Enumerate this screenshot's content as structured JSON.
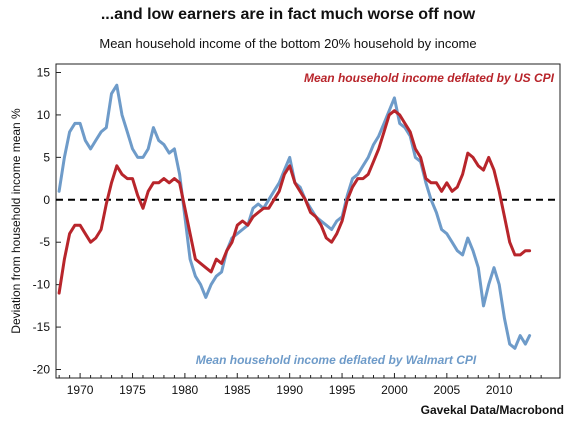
{
  "title": "...and low earners are in fact much worse off now",
  "subtitle": "Mean household income of the bottom 20% household by income",
  "source": "Gavekal Data/Macrobond",
  "chart_data": {
    "type": "line",
    "ylabel": "Deviation from household income mean %",
    "xlim": [
      1967.7,
      2015.8
    ],
    "ylim": [
      -21,
      16
    ],
    "xticks": [
      1970,
      1975,
      1980,
      1985,
      1990,
      1995,
      2000,
      2005,
      2010
    ],
    "yticks": [
      15,
      10,
      5,
      0,
      -5,
      -10,
      -15,
      -20
    ],
    "reference_line": {
      "y": 0,
      "style": "dashed",
      "color": "#000000"
    },
    "series": [
      {
        "name": "Mean household income deflated by US CPI",
        "color": "#b8252b",
        "label_position": "top-right",
        "points": [
          [
            1968.0,
            -11.0
          ],
          [
            1968.5,
            -7.0
          ],
          [
            1969.0,
            -4.0
          ],
          [
            1969.5,
            -3.0
          ],
          [
            1970.0,
            -3.0
          ],
          [
            1970.5,
            -4.0
          ],
          [
            1971.0,
            -5.0
          ],
          [
            1971.5,
            -4.5
          ],
          [
            1972.0,
            -3.5
          ],
          [
            1972.5,
            -0.5
          ],
          [
            1973.0,
            2.0
          ],
          [
            1973.5,
            4.0
          ],
          [
            1974.0,
            3.0
          ],
          [
            1974.5,
            2.5
          ],
          [
            1975.0,
            2.5
          ],
          [
            1975.5,
            0.5
          ],
          [
            1976.0,
            -1.0
          ],
          [
            1976.5,
            1.0
          ],
          [
            1977.0,
            2.0
          ],
          [
            1977.5,
            2.0
          ],
          [
            1978.0,
            2.5
          ],
          [
            1978.5,
            2.0
          ],
          [
            1979.0,
            2.5
          ],
          [
            1979.5,
            2.0
          ],
          [
            1980.0,
            -1.0
          ],
          [
            1980.5,
            -4.0
          ],
          [
            1981.0,
            -7.0
          ],
          [
            1981.5,
            -7.5
          ],
          [
            1982.0,
            -8.0
          ],
          [
            1982.5,
            -8.5
          ],
          [
            1983.0,
            -7.0
          ],
          [
            1983.5,
            -7.5
          ],
          [
            1984.0,
            -6.0
          ],
          [
            1984.5,
            -5.0
          ],
          [
            1985.0,
            -3.0
          ],
          [
            1985.5,
            -2.5
          ],
          [
            1986.0,
            -3.0
          ],
          [
            1986.5,
            -2.0
          ],
          [
            1987.0,
            -1.5
          ],
          [
            1987.5,
            -1.0
          ],
          [
            1988.0,
            -1.0
          ],
          [
            1988.5,
            0.0
          ],
          [
            1989.0,
            1.0
          ],
          [
            1989.5,
            3.0
          ],
          [
            1990.0,
            4.0
          ],
          [
            1990.5,
            2.0
          ],
          [
            1991.0,
            1.0
          ],
          [
            1991.5,
            0.0
          ],
          [
            1992.0,
            -1.5
          ],
          [
            1992.5,
            -2.0
          ],
          [
            1993.0,
            -3.0
          ],
          [
            1993.5,
            -4.5
          ],
          [
            1994.0,
            -5.0
          ],
          [
            1994.5,
            -4.0
          ],
          [
            1995.0,
            -2.5
          ],
          [
            1995.5,
            0.0
          ],
          [
            1996.0,
            1.5
          ],
          [
            1996.5,
            2.5
          ],
          [
            1997.0,
            2.5
          ],
          [
            1997.5,
            3.0
          ],
          [
            1998.0,
            4.5
          ],
          [
            1998.5,
            6.0
          ],
          [
            1999.0,
            8.0
          ],
          [
            1999.5,
            10.0
          ],
          [
            2000.0,
            10.5
          ],
          [
            2000.5,
            10.0
          ],
          [
            2001.0,
            9.0
          ],
          [
            2001.5,
            8.0
          ],
          [
            2002.0,
            6.0
          ],
          [
            2002.5,
            5.0
          ],
          [
            2003.0,
            2.5
          ],
          [
            2003.5,
            2.0
          ],
          [
            2004.0,
            2.0
          ],
          [
            2004.5,
            1.0
          ],
          [
            2005.0,
            2.0
          ],
          [
            2005.5,
            1.0
          ],
          [
            2006.0,
            1.5
          ],
          [
            2006.5,
            3.0
          ],
          [
            2007.0,
            5.5
          ],
          [
            2007.5,
            5.0
          ],
          [
            2008.0,
            4.0
          ],
          [
            2008.5,
            3.5
          ],
          [
            2009.0,
            5.0
          ],
          [
            2009.5,
            3.5
          ],
          [
            2010.0,
            1.0
          ],
          [
            2010.5,
            -2.0
          ],
          [
            2011.0,
            -5.0
          ],
          [
            2011.5,
            -6.5
          ],
          [
            2012.0,
            -6.5
          ],
          [
            2012.5,
            -6.0
          ],
          [
            2012.9,
            -6.0
          ]
        ]
      },
      {
        "name": "Mean household income deflated by Walmart CPI",
        "color": "#6e9bc9",
        "label_position": "bottom-center",
        "points": [
          [
            1968.0,
            1.0
          ],
          [
            1968.5,
            5.0
          ],
          [
            1969.0,
            8.0
          ],
          [
            1969.5,
            9.0
          ],
          [
            1970.0,
            9.0
          ],
          [
            1970.5,
            7.0
          ],
          [
            1971.0,
            6.0
          ],
          [
            1971.5,
            7.0
          ],
          [
            1972.0,
            8.0
          ],
          [
            1972.5,
            8.5
          ],
          [
            1973.0,
            12.5
          ],
          [
            1973.5,
            13.5
          ],
          [
            1974.0,
            10.0
          ],
          [
            1974.5,
            8.0
          ],
          [
            1975.0,
            6.0
          ],
          [
            1975.5,
            5.0
          ],
          [
            1976.0,
            5.0
          ],
          [
            1976.5,
            6.0
          ],
          [
            1977.0,
            8.5
          ],
          [
            1977.5,
            7.0
          ],
          [
            1978.0,
            6.5
          ],
          [
            1978.5,
            5.5
          ],
          [
            1979.0,
            6.0
          ],
          [
            1979.5,
            3.0
          ],
          [
            1980.0,
            -2.0
          ],
          [
            1980.5,
            -7.0
          ],
          [
            1981.0,
            -9.0
          ],
          [
            1981.5,
            -10.0
          ],
          [
            1982.0,
            -11.5
          ],
          [
            1982.5,
            -10.0
          ],
          [
            1983.0,
            -9.0
          ],
          [
            1983.5,
            -8.5
          ],
          [
            1984.0,
            -6.0
          ],
          [
            1984.5,
            -4.5
          ],
          [
            1985.0,
            -4.0
          ],
          [
            1985.5,
            -3.5
          ],
          [
            1986.0,
            -3.0
          ],
          [
            1986.5,
            -1.0
          ],
          [
            1987.0,
            -0.5
          ],
          [
            1987.5,
            -1.0
          ],
          [
            1988.0,
            0.0
          ],
          [
            1988.5,
            1.0
          ],
          [
            1989.0,
            2.0
          ],
          [
            1989.5,
            3.5
          ],
          [
            1990.0,
            5.0
          ],
          [
            1990.5,
            2.0
          ],
          [
            1991.0,
            1.5
          ],
          [
            1991.5,
            0.0
          ],
          [
            1992.0,
            -1.0
          ],
          [
            1992.5,
            -2.0
          ],
          [
            1993.0,
            -2.5
          ],
          [
            1993.5,
            -3.0
          ],
          [
            1994.0,
            -3.5
          ],
          [
            1994.5,
            -2.5
          ],
          [
            1995.0,
            -2.0
          ],
          [
            1995.5,
            0.5
          ],
          [
            1996.0,
            2.5
          ],
          [
            1996.5,
            3.0
          ],
          [
            1997.0,
            4.0
          ],
          [
            1997.5,
            5.0
          ],
          [
            1998.0,
            6.5
          ],
          [
            1998.5,
            7.5
          ],
          [
            1999.0,
            9.0
          ],
          [
            1999.5,
            10.5
          ],
          [
            2000.0,
            12.0
          ],
          [
            2000.5,
            9.0
          ],
          [
            2001.0,
            8.5
          ],
          [
            2001.5,
            7.5
          ],
          [
            2002.0,
            5.0
          ],
          [
            2002.5,
            4.5
          ],
          [
            2003.0,
            2.0
          ],
          [
            2003.5,
            0.0
          ],
          [
            2004.0,
            -1.5
          ],
          [
            2004.5,
            -3.5
          ],
          [
            2005.0,
            -4.0
          ],
          [
            2005.5,
            -5.0
          ],
          [
            2006.0,
            -6.0
          ],
          [
            2006.5,
            -6.5
          ],
          [
            2007.0,
            -4.5
          ],
          [
            2007.5,
            -6.0
          ],
          [
            2008.0,
            -8.0
          ],
          [
            2008.5,
            -12.5
          ],
          [
            2009.0,
            -10.0
          ],
          [
            2009.5,
            -8.0
          ],
          [
            2010.0,
            -10.0
          ],
          [
            2010.5,
            -14.0
          ],
          [
            2011.0,
            -17.0
          ],
          [
            2011.5,
            -17.5
          ],
          [
            2012.0,
            -16.0
          ],
          [
            2012.5,
            -17.0
          ],
          [
            2012.9,
            -16.0
          ]
        ]
      }
    ]
  }
}
